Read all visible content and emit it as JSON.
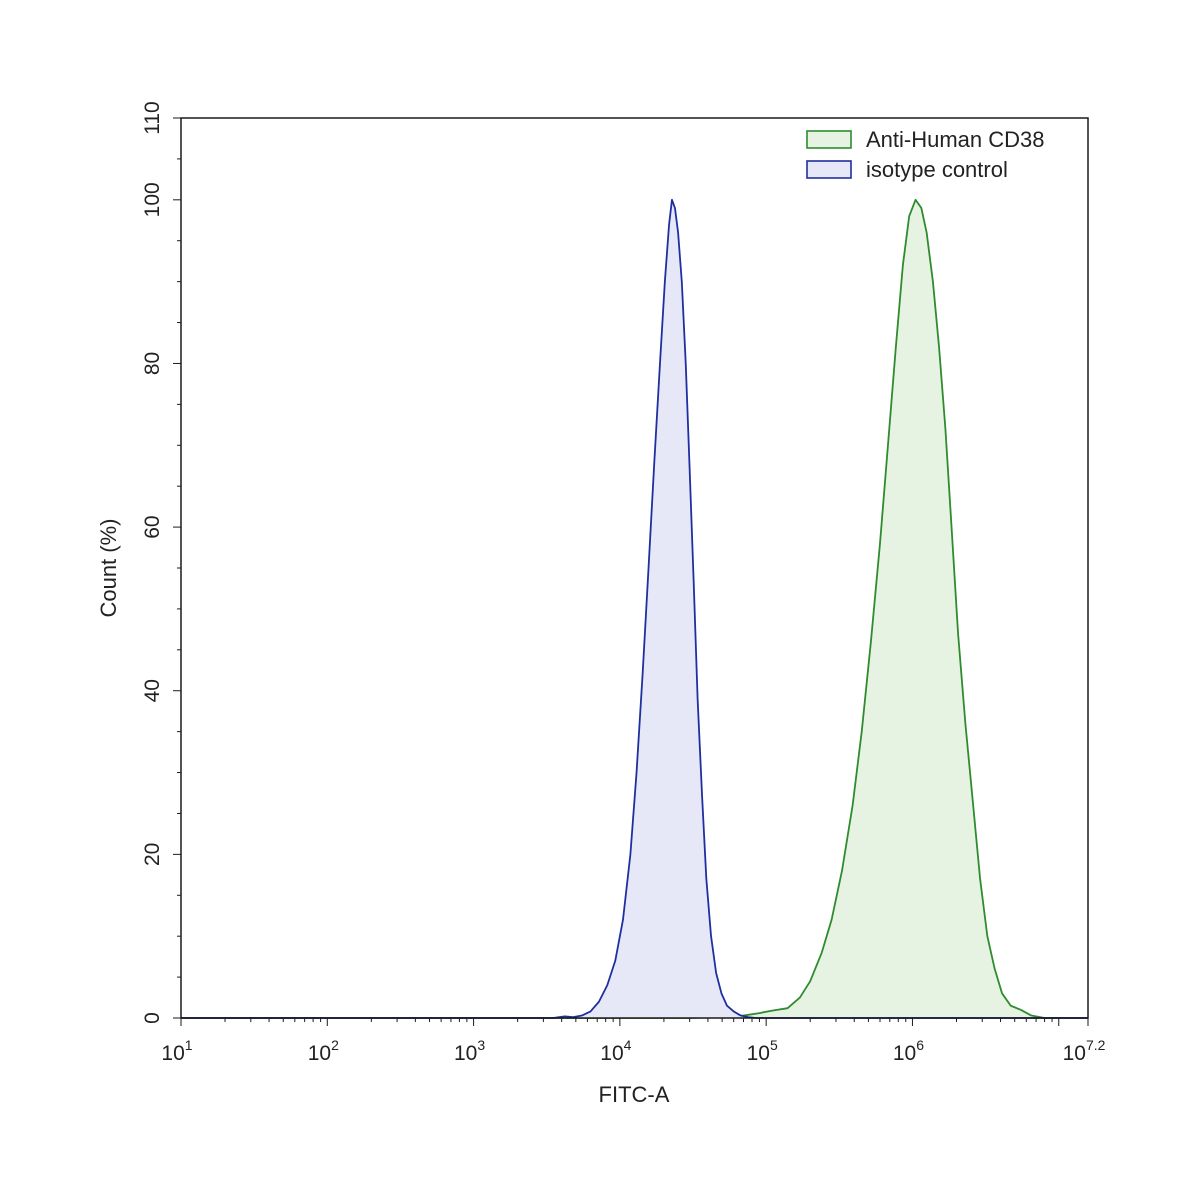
{
  "chart_data": {
    "type": "area",
    "title": "",
    "xlabel": "FITC-A",
    "ylabel": "Count (%)",
    "x_scale": "log10",
    "xlim": [
      10,
      15848931.92
    ],
    "ylim": [
      0,
      110
    ],
    "grid": false,
    "legend_position": "top-right",
    "x_ticks": [
      {
        "value": 10,
        "base": "10",
        "exponent": "1"
      },
      {
        "value": 100,
        "base": "10",
        "exponent": "2"
      },
      {
        "value": 1000,
        "base": "10",
        "exponent": "3"
      },
      {
        "value": 10000,
        "base": "10",
        "exponent": "4"
      },
      {
        "value": 100000,
        "base": "10",
        "exponent": "5"
      },
      {
        "value": 1000000,
        "base": "10",
        "exponent": "6"
      },
      {
        "value": 15848931.92,
        "base": "10",
        "exponent": "7.2"
      }
    ],
    "y_ticks": [
      "0",
      "20",
      "40",
      "60",
      "80",
      "100",
      "110"
    ],
    "series": [
      {
        "name": "Anti-Human CD38",
        "color": "#2e8b2e",
        "fill": "#e6f3e3",
        "points": [
          [
            10,
            0
          ],
          [
            30000,
            0
          ],
          [
            50000,
            0.1
          ],
          [
            70000,
            0.3
          ],
          [
            90000,
            0.6
          ],
          [
            110000,
            0.9
          ],
          [
            140000,
            1.2
          ],
          [
            170000,
            2.5
          ],
          [
            200000,
            4.5
          ],
          [
            240000,
            8
          ],
          [
            280000,
            12
          ],
          [
            330000,
            18
          ],
          [
            390000,
            26
          ],
          [
            450000,
            35
          ],
          [
            520000,
            46
          ],
          [
            600000,
            58
          ],
          [
            680000,
            70
          ],
          [
            770000,
            82
          ],
          [
            860000,
            92
          ],
          [
            950000,
            98
          ],
          [
            1050000,
            100
          ],
          [
            1150000,
            99
          ],
          [
            1250000,
            96
          ],
          [
            1380000,
            90
          ],
          [
            1520000,
            82
          ],
          [
            1680000,
            72
          ],
          [
            1850000,
            60
          ],
          [
            2050000,
            47
          ],
          [
            2300000,
            36
          ],
          [
            2600000,
            26
          ],
          [
            2900000,
            17
          ],
          [
            3250000,
            10
          ],
          [
            3650000,
            6
          ],
          [
            4100000,
            3
          ],
          [
            4700000,
            1.5
          ],
          [
            5500000,
            1
          ],
          [
            6500000,
            0.3
          ],
          [
            8000000,
            0
          ],
          [
            15848931.92,
            0
          ]
        ]
      },
      {
        "name": "isotype control",
        "color": "#1f2fa0",
        "fill": "#e6e8f8",
        "points": [
          [
            10,
            0
          ],
          [
            3500,
            0
          ],
          [
            4200,
            0.2
          ],
          [
            4800,
            0.1
          ],
          [
            5500,
            0.3
          ],
          [
            6300,
            0.8
          ],
          [
            7200,
            2
          ],
          [
            8200,
            4
          ],
          [
            9300,
            7
          ],
          [
            10500,
            12
          ],
          [
            11800,
            20
          ],
          [
            13000,
            30
          ],
          [
            14300,
            42
          ],
          [
            15700,
            55
          ],
          [
            17200,
            68
          ],
          [
            18800,
            80
          ],
          [
            20300,
            90
          ],
          [
            21700,
            97
          ],
          [
            22700,
            100
          ],
          [
            23800,
            99
          ],
          [
            25000,
            96
          ],
          [
            26500,
            90
          ],
          [
            28200,
            80
          ],
          [
            30000,
            67
          ],
          [
            32000,
            53
          ],
          [
            34000,
            39
          ],
          [
            36500,
            27
          ],
          [
            39000,
            17
          ],
          [
            42000,
            10
          ],
          [
            45500,
            5.5
          ],
          [
            49500,
            3
          ],
          [
            54000,
            1.5
          ],
          [
            60000,
            0.8
          ],
          [
            67000,
            0.3
          ],
          [
            75000,
            0.1
          ],
          [
            85000,
            0
          ],
          [
            15848931.92,
            0
          ]
        ]
      }
    ]
  }
}
